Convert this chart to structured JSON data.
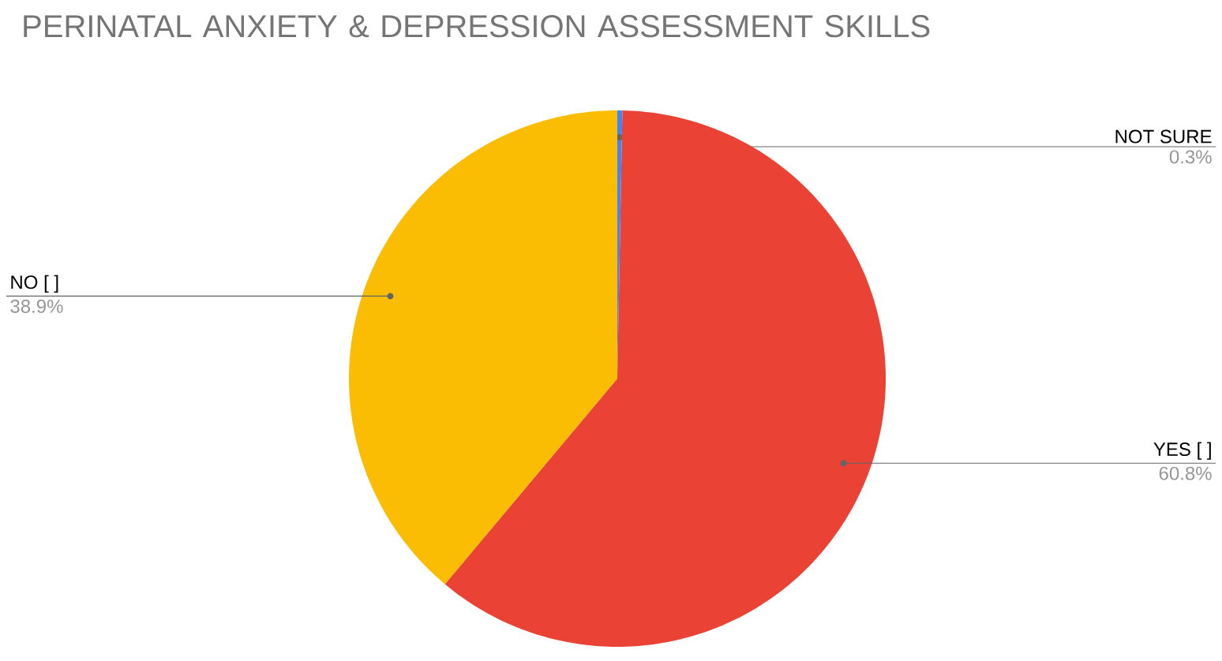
{
  "chart_data": {
    "type": "pie",
    "title": "PERINATAL ANXIETY & DEPRESSION ASSESSMENT SKILLS",
    "categories": [
      "NOT SURE",
      "YES [ ]",
      "NO   [ ]"
    ],
    "values": [
      0.3,
      60.8,
      38.9
    ],
    "colors": [
      "#4285f4",
      "#ea4335",
      "#fbbc04"
    ],
    "value_labels": [
      "0.3%",
      "60.8%",
      "38.9%"
    ]
  }
}
